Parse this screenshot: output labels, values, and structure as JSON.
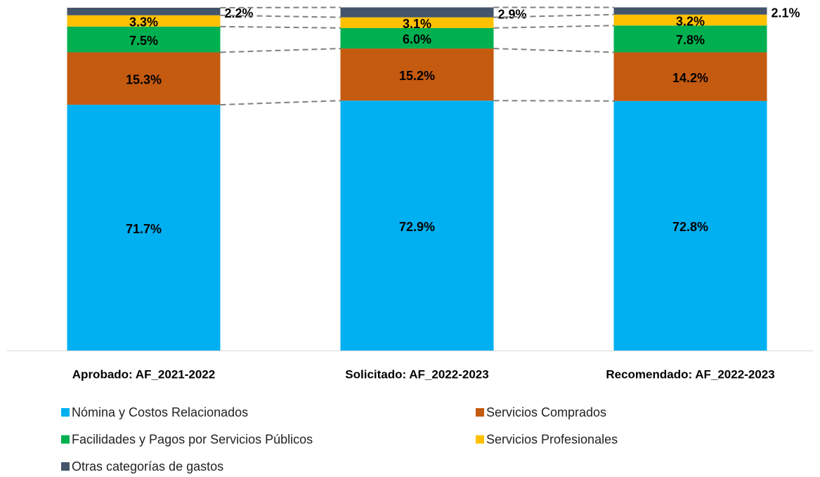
{
  "chart_data": {
    "type": "stacked_bar",
    "categories": [
      "Aprobado: AF_2021-2022",
      "Solicitado: AF_2022-2023",
      "Recomendado: AF_2022-2023"
    ],
    "series": [
      {
        "name": "Nómina y Costos Relacionados",
        "color": "#00b0f0",
        "values": [
          71.7,
          72.9,
          72.8
        ],
        "value_labels": [
          "71.7%",
          "72.9%",
          "72.8%"
        ]
      },
      {
        "name": "Servicios Comprados",
        "color": "#c55a11",
        "values": [
          15.3,
          15.2,
          14.2
        ],
        "value_labels": [
          "15.3%",
          "15.2%",
          "14.2%"
        ]
      },
      {
        "name": "Facilidades y Pagos por Servicios Públicos",
        "color": "#00b050",
        "values": [
          7.5,
          6.0,
          7.8
        ],
        "value_labels": [
          "7.5%",
          "6.0%",
          "7.8%"
        ]
      },
      {
        "name": "Servicios Profesionales",
        "color": "#ffc000",
        "values": [
          3.3,
          3.1,
          3.2
        ],
        "value_labels": [
          "3.3%",
          "3.1%",
          "3.2%"
        ]
      },
      {
        "name": "Otras categorías de gastos",
        "color": "#44546a",
        "values": [
          2.2,
          2.9,
          2.1
        ],
        "value_labels": [
          "2.2%",
          "2.9%",
          "2.1%"
        ]
      }
    ],
    "ylim": [
      0,
      100
    ]
  }
}
